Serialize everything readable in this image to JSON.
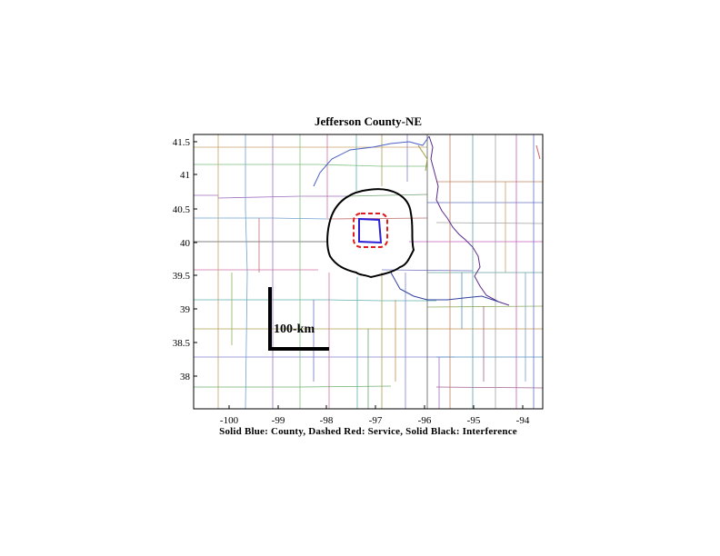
{
  "title": "Jefferson County-NE",
  "caption": "Solid Blue: County, Dashed Red: Service, Solid Black: Interference",
  "scale_bar": {
    "label": "100-km"
  },
  "axes": {
    "x_ticks": [
      "-100",
      "-99",
      "-98",
      "-97",
      "-96",
      "-95",
      "-94"
    ],
    "y_ticks": [
      "41.5",
      "41",
      "40.5",
      "40",
      "39.5",
      "39",
      "38.5",
      "38"
    ]
  },
  "colors": {
    "county": "#2a1fd6",
    "service": "#e01a1a",
    "interference": "#000000"
  }
}
